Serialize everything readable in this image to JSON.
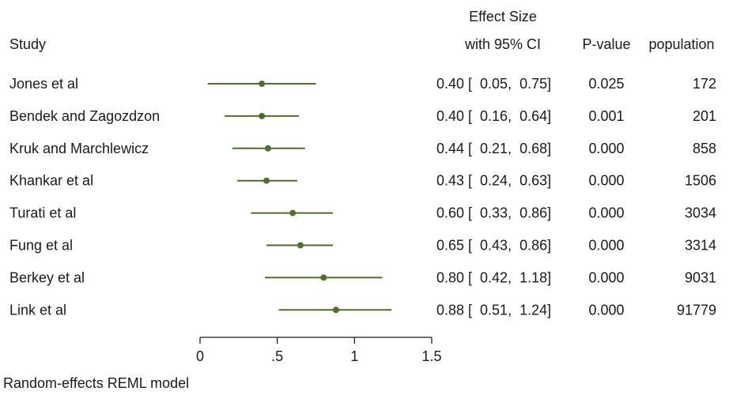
{
  "header": {
    "study": "Study",
    "effect_line1": "Effect Size",
    "effect_line2": "with 95% CI",
    "pvalue": "P-value",
    "population": "population"
  },
  "footer": "Random-effects REML model",
  "colors": {
    "marker": "#4e6e2e",
    "text": "#1a1a1a",
    "axis": "#1a1a1a"
  },
  "chart_data": {
    "type": "forest",
    "x_ticks": [
      0,
      0.5,
      1,
      1.5
    ],
    "x_tick_labels": [
      "0",
      ".5",
      "1",
      "1.5"
    ],
    "xlim": [
      0,
      1.5
    ],
    "studies": [
      {
        "name": "Jones et al",
        "es": 0.4,
        "lo": 0.05,
        "hi": 0.75,
        "ci_text": "0.40 [  0.05,  0.75]",
        "p": "0.025",
        "population": "172"
      },
      {
        "name": "Bendek and  Zagozdzon",
        "es": 0.4,
        "lo": 0.16,
        "hi": 0.64,
        "ci_text": "0.40 [  0.16,  0.64]",
        "p": "0.001",
        "population": "201"
      },
      {
        "name": "Kruk and Marchlewicz",
        "es": 0.44,
        "lo": 0.21,
        "hi": 0.68,
        "ci_text": "0.44 [  0.21,  0.68]",
        "p": "0.000",
        "population": "858"
      },
      {
        "name": "Khankar et al",
        "es": 0.43,
        "lo": 0.24,
        "hi": 0.63,
        "ci_text": "0.43 [  0.24,  0.63]",
        "p": "0.000",
        "population": "1506"
      },
      {
        "name": "Turati et al",
        "es": 0.6,
        "lo": 0.33,
        "hi": 0.86,
        "ci_text": "0.60 [  0.33,  0.86]",
        "p": "0.000",
        "population": "3034"
      },
      {
        "name": "Fung et al",
        "es": 0.65,
        "lo": 0.43,
        "hi": 0.86,
        "ci_text": "0.65 [  0.43,  0.86]",
        "p": "0.000",
        "population": "3314"
      },
      {
        "name": "Berkey et al",
        "es": 0.8,
        "lo": 0.42,
        "hi": 1.18,
        "ci_text": "0.80 [  0.42,  1.18]",
        "p": "0.000",
        "population": "9031"
      },
      {
        "name": "Link et al",
        "es": 0.88,
        "lo": 0.51,
        "hi": 1.24,
        "ci_text": "0.88 [  0.51,  1.24]",
        "p": "0.000",
        "population": "91779"
      }
    ]
  }
}
